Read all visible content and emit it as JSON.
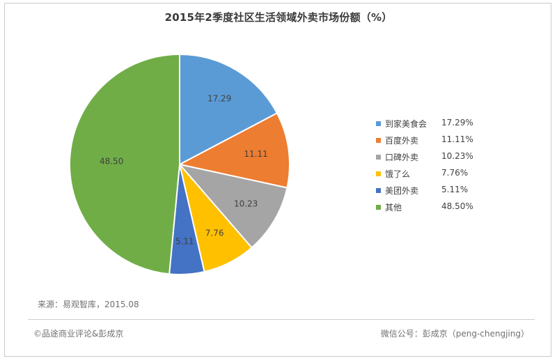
{
  "chart_data": {
    "type": "pie",
    "title": "2015年2季度社区生活领域外卖市场份额（%）",
    "slices": [
      {
        "label": "到家美食会",
        "value": 17.29,
        "value_label": "17.29",
        "legend_value": "17.29%",
        "color": "#5b9bd5"
      },
      {
        "label": "百度外卖",
        "value": 11.11,
        "value_label": "11.11",
        "legend_value": "11.11%",
        "color": "#ed7d31"
      },
      {
        "label": "口碑外卖",
        "value": 10.23,
        "value_label": "10.23",
        "legend_value": "10.23%",
        "color": "#a5a5a5"
      },
      {
        "label": "饿了么",
        "value": 7.76,
        "value_label": "7.76",
        "legend_value": "7.76%",
        "color": "#ffc000"
      },
      {
        "label": "美团外卖",
        "value": 5.11,
        "value_label": "5.11",
        "legend_value": "5.11%",
        "color": "#4472c4"
      },
      {
        "label": "其他",
        "value": 48.5,
        "value_label": "48.50",
        "legend_value": "48.50%",
        "color": "#70ad47"
      }
    ],
    "legend_position": "right",
    "start_angle": "12 o'clock",
    "direction": "clockwise"
  },
  "source": "来源：易观智库，2015.08",
  "footer": {
    "left": "©品途商业评论&彭成京",
    "right": "微信公号：彭成京（peng-chengjing）"
  }
}
